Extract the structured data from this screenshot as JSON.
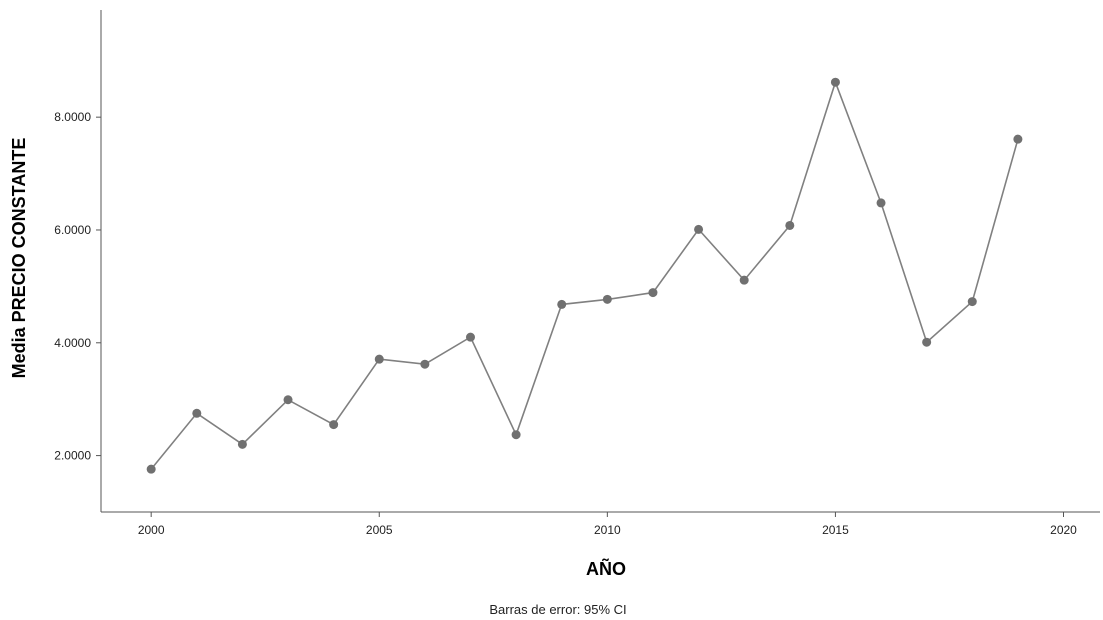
{
  "chart_data": {
    "type": "line",
    "title": "",
    "xlabel": "AÑO",
    "ylabel": "Media PRECIO CONSTANTE",
    "footnote": "Barras de error: 95% CI",
    "xlim": [
      1998.9,
      2020.8
    ],
    "ylim": [
      1.0,
      9.9
    ],
    "x_ticks": [
      2000,
      2005,
      2010,
      2015,
      2020
    ],
    "y_ticks": [
      2.0,
      4.0,
      6.0,
      8.0
    ],
    "y_tick_labels": [
      "2.0000",
      "4.0000",
      "6.0000",
      "8.0000"
    ],
    "grid": false,
    "series": [
      {
        "x": [
          2000,
          2001,
          2002,
          2003,
          2004,
          2005,
          2006,
          2007,
          2008,
          2009,
          2010,
          2011,
          2012,
          2013,
          2014,
          2015,
          2016,
          2017,
          2018,
          2019
        ],
        "values": [
          1.76,
          2.75,
          2.2,
          2.99,
          2.55,
          3.71,
          3.62,
          4.1,
          2.37,
          4.68,
          4.77,
          4.89,
          6.01,
          5.11,
          6.08,
          8.62,
          6.48,
          4.01,
          4.73,
          7.61
        ]
      }
    ],
    "colors": {
      "line": "#808080",
      "marker": "#707070",
      "axis": "#555555"
    }
  }
}
